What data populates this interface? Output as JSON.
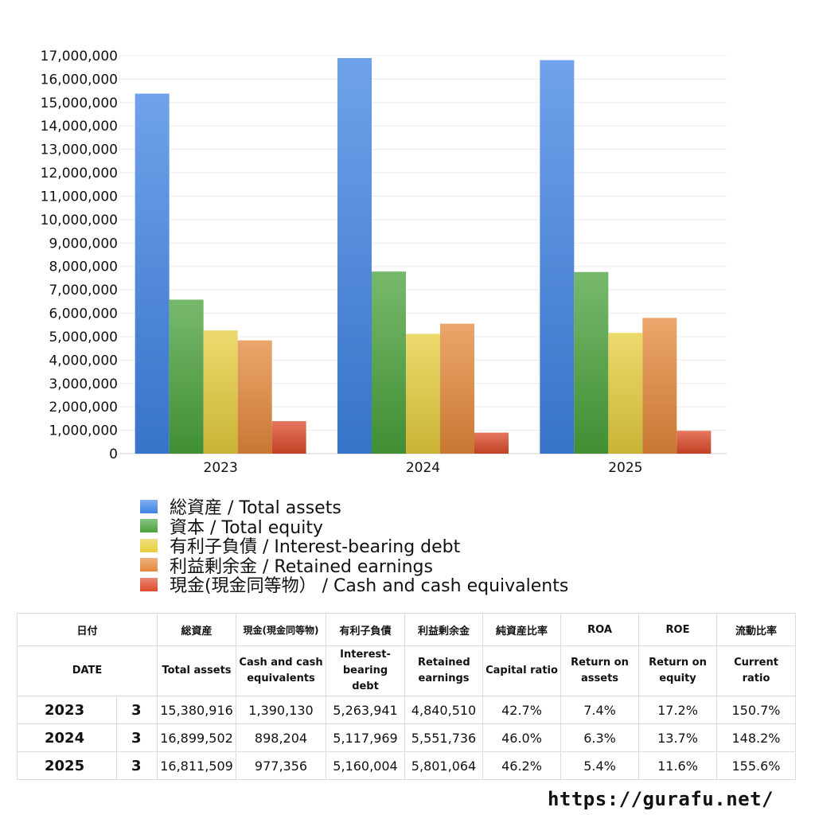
{
  "chart_data": {
    "type": "bar",
    "categories": [
      "2023",
      "2024",
      "2025"
    ],
    "ylim": [
      0,
      17000000
    ],
    "y_ticks": [
      "0",
      "1,000,000",
      "2,000,000",
      "3,000,000",
      "4,000,000",
      "5,000,000",
      "6,000,000",
      "7,000,000",
      "8,000,000",
      "9,000,000",
      "10,000,000",
      "11,000,000",
      "12,000,000",
      "13,000,000",
      "14,000,000",
      "15,000,000",
      "16,000,000",
      "17,000,000"
    ],
    "grid": true,
    "legend_position": "bottom",
    "series": [
      {
        "name": "総資産 / Total assets",
        "color": "#3f83e3",
        "values": [
          15380916,
          16899502,
          16811509
        ]
      },
      {
        "name": "資本 / Total equity",
        "color": "#4aa13b",
        "values": [
          6580000,
          7780000,
          7760000
        ]
      },
      {
        "name": "有利子負債 / Interest-bearing debt",
        "color": "#e6cd3c",
        "values": [
          5263941,
          5117969,
          5160004
        ]
      },
      {
        "name": "利益剰余金 / Retained earnings",
        "color": "#e4883a",
        "values": [
          4840510,
          5551736,
          5801064
        ]
      },
      {
        "name": "現金(現金同等物） /  Cash and cash equivalents",
        "color": "#dc4a2a",
        "values": [
          1390130,
          898204,
          977356
        ]
      }
    ]
  },
  "table": {
    "header_jp": {
      "date": "日付",
      "total_assets": "総資産",
      "cash": "現金(現金同等物)",
      "debt": "有利子負債",
      "retained": "利益剰余金",
      "capital_ratio": "純資産比率",
      "roa": "ROA",
      "roe": "ROE",
      "current_ratio": "流動比率"
    },
    "header_en": {
      "date": "DATE",
      "total_assets": "Total assets",
      "cash": "Cash and cash equivalents",
      "debt": "Interest-bearing debt",
      "retained": "Retained earnings",
      "capital_ratio": "Capital ratio",
      "roa": "Return on assets",
      "roe": "Return on equity",
      "current_ratio": "Current ratio"
    },
    "rows": [
      {
        "year": "2023",
        "month": "3",
        "total_assets": "15,380,916",
        "cash": "1,390,130",
        "debt": "5,263,941",
        "retained": "4,840,510",
        "capital_ratio": "42.7%",
        "roa": "7.4%",
        "roe": "17.2%",
        "current_ratio": "150.7%"
      },
      {
        "year": "2024",
        "month": "3",
        "total_assets": "16,899,502",
        "cash": "898,204",
        "debt": "5,117,969",
        "retained": "5,551,736",
        "capital_ratio": "46.0%",
        "roa": "6.3%",
        "roe": "13.7%",
        "current_ratio": "148.2%"
      },
      {
        "year": "2025",
        "month": "3",
        "total_assets": "16,811,509",
        "cash": "977,356",
        "debt": "5,160,004",
        "retained": "5,801,064",
        "capital_ratio": "46.2%",
        "roa": "5.4%",
        "roe": "11.6%",
        "current_ratio": "155.6%"
      }
    ]
  },
  "footer": {
    "site": "https://gurafu.net/"
  }
}
